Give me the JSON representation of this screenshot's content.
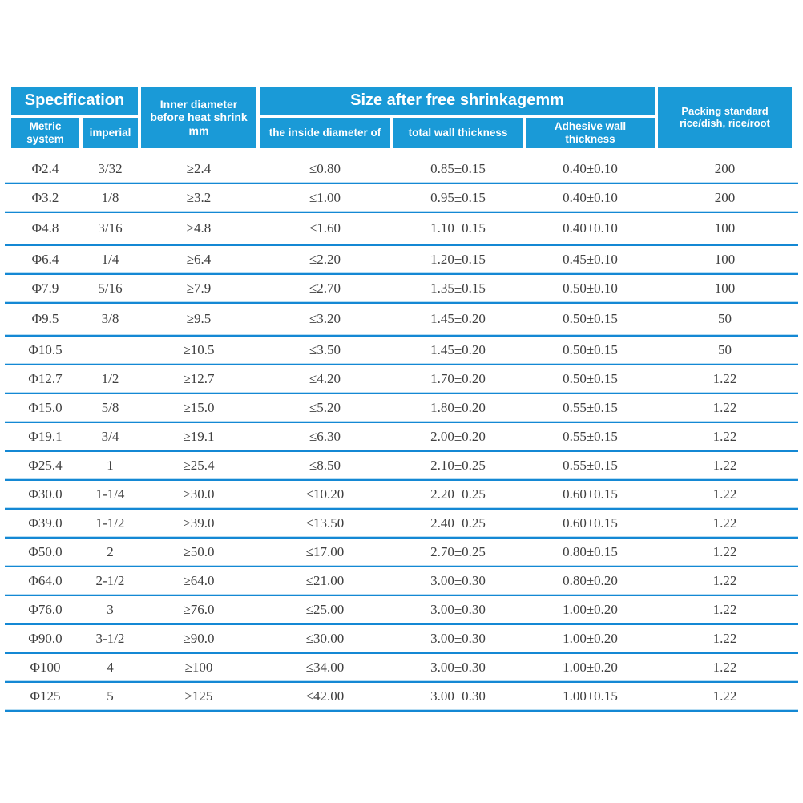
{
  "colors": {
    "header_bg": "#1a9ad7",
    "header_text": "#ffffff",
    "divider_strong": "#1488d4",
    "divider_light": "#b8ddf2",
    "body_text": "#3f3f3f",
    "page_bg": "#ffffff"
  },
  "chart_data": {
    "type": "table",
    "header": {
      "group_specification": "Specification",
      "group_size_after": "Size after free shrinkagemm",
      "col_metric": "Metric system",
      "col_imperial": "imperial",
      "col_inner_diameter": "Inner diameter before heat shrink mm",
      "col_inside_diameter": "the inside diameter of",
      "col_total_wall": "total wall thickness",
      "col_adhesive_wall": "Adhesive wall thickness",
      "col_packing": "Packing standard rice/dish, rice/root"
    },
    "columns": [
      "Metric system",
      "imperial",
      "Inner diameter before heat shrink mm",
      "the inside diameter of",
      "total wall thickness",
      "Adhesive wall thickness",
      "Packing standard rice/dish, rice/root"
    ],
    "rows": [
      [
        "Φ2.4",
        "3/32",
        "≥2.4",
        "≤0.80",
        "0.85±0.15",
        "0.40±0.10",
        "200"
      ],
      [
        "Φ3.2",
        "1/8",
        "≥3.2",
        "≤1.00",
        "0.95±0.15",
        "0.40±0.10",
        "200"
      ],
      [
        "Φ4.8",
        "3/16",
        "≥4.8",
        "≤1.60",
        "1.10±0.15",
        "0.40±0.10",
        "100"
      ],
      [
        "Φ6.4",
        "1/4",
        "≥6.4",
        "≤2.20",
        "1.20±0.15",
        "0.45±0.10",
        "100"
      ],
      [
        "Φ7.9",
        "5/16",
        "≥7.9",
        "≤2.70",
        "1.35±0.15",
        "0.50±0.10",
        "100"
      ],
      [
        "Φ9.5",
        "3/8",
        "≥9.5",
        "≤3.20",
        "1.45±0.20",
        "0.50±0.15",
        "50"
      ],
      [
        "Φ10.5",
        "",
        "≥10.5",
        "≤3.50",
        "1.45±0.20",
        "0.50±0.15",
        "50"
      ],
      [
        "Φ12.7",
        "1/2",
        "≥12.7",
        "≤4.20",
        "1.70±0.20",
        "0.50±0.15",
        "1.22"
      ],
      [
        "Φ15.0",
        "5/8",
        "≥15.0",
        "≤5.20",
        "1.80±0.20",
        "0.55±0.15",
        "1.22"
      ],
      [
        "Φ19.1",
        "3/4",
        "≥19.1",
        "≤6.30",
        "2.00±0.20",
        "0.55±0.15",
        "1.22"
      ],
      [
        "Φ25.4",
        "1",
        "≥25.4",
        "≤8.50",
        "2.10±0.25",
        "0.55±0.15",
        "1.22"
      ],
      [
        "Φ30.0",
        "1-1/4",
        "≥30.0",
        "≤10.20",
        "2.20±0.25",
        "0.60±0.15",
        "1.22"
      ],
      [
        "Φ39.0",
        "1-1/2",
        "≥39.0",
        "≤13.50",
        "2.40±0.25",
        "0.60±0.15",
        "1.22"
      ],
      [
        "Φ50.0",
        "2",
        "≥50.0",
        "≤17.00",
        "2.70±0.25",
        "0.80±0.15",
        "1.22"
      ],
      [
        "Φ64.0",
        "2-1/2",
        "≥64.0",
        "≤21.00",
        "3.00±0.30",
        "0.80±0.20",
        "1.22"
      ],
      [
        "Φ76.0",
        "3",
        "≥76.0",
        "≤25.00",
        "3.00±0.30",
        "1.00±0.20",
        "1.22"
      ],
      [
        "Φ90.0",
        "3-1/2",
        "≥90.0",
        "≤30.00",
        "3.00±0.30",
        "1.00±0.20",
        "1.22"
      ],
      [
        "Φ100",
        "4",
        "≥100",
        "≤34.00",
        "3.00±0.30",
        "1.00±0.20",
        "1.22"
      ],
      [
        "Φ125",
        "5",
        "≥125",
        "≤42.00",
        "3.00±0.30",
        "1.00±0.15",
        "1.22"
      ]
    ]
  }
}
